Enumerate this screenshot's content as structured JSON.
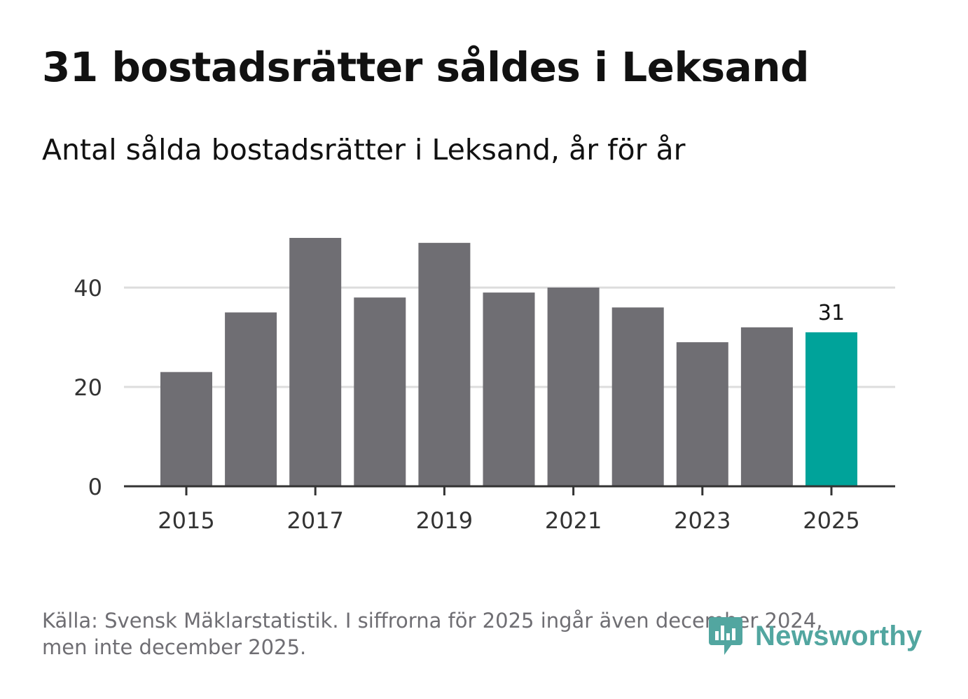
{
  "title": "31 bostadsrätter såldes i Leksand",
  "subtitle": "Antal sålda bostadsrätter i Leksand, år för år",
  "footer": {
    "line1": "Källa: Svensk Mäklarstatistik. I siffrorna för 2025 ingår även december 2024,",
    "line2": "men inte december 2025."
  },
  "brand": {
    "name": "Newsworthy",
    "color": "#52a6a0"
  },
  "colors": {
    "bar": "#6f6e73",
    "highlight": "#00a39a",
    "grid": "#dddddd",
    "axis": "#333333"
  },
  "chart_data": {
    "type": "bar",
    "categories": [
      "2015",
      "2016",
      "2017",
      "2018",
      "2019",
      "2020",
      "2021",
      "2022",
      "2023",
      "2024",
      "2025"
    ],
    "values": [
      23,
      35,
      50,
      38,
      49,
      39,
      40,
      36,
      29,
      32,
      31
    ],
    "highlight_category": "2025",
    "x_tick_labels": [
      "2015",
      "2017",
      "2019",
      "2021",
      "2023",
      "2025"
    ],
    "y_ticks": [
      0,
      20,
      40
    ],
    "ylim": [
      0,
      50
    ],
    "data_labels": [
      {
        "category": "2025",
        "text": "31"
      }
    ],
    "title": "31 bostadsrätter såldes i Leksand",
    "subtitle": "Antal sålda bostadsrätter i Leksand, år för år",
    "xlabel": "",
    "ylabel": "",
    "grid": true
  }
}
